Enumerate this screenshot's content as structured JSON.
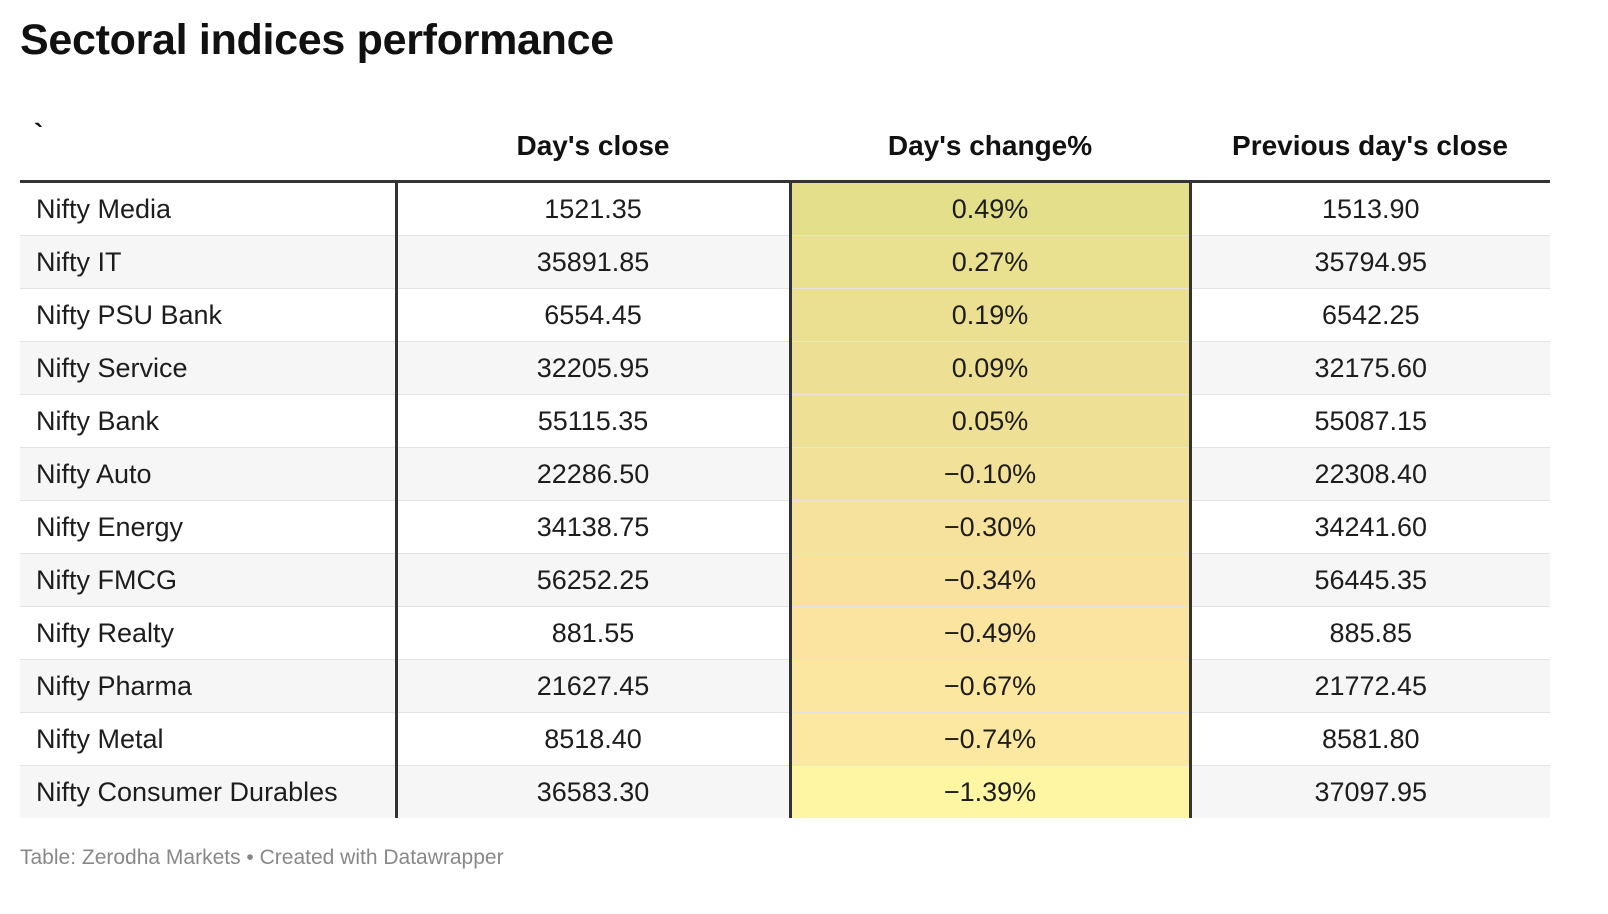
{
  "title": "Sectoral indices performance",
  "footer": "Table: Zerodha Markets • Created with Datawrapper",
  "chart_data": {
    "type": "table",
    "columns": [
      "`",
      "Day's close",
      "Day's change%",
      "Previous day's close"
    ],
    "rows": [
      {
        "name": "Nifty Media",
        "close": "1521.35",
        "change": "0.49%",
        "prev": "1513.90",
        "change_value": 0.49
      },
      {
        "name": "Nifty IT",
        "close": "35891.85",
        "change": "0.27%",
        "prev": "35794.95",
        "change_value": 0.27
      },
      {
        "name": "Nifty PSU Bank",
        "close": "6554.45",
        "change": "0.19%",
        "prev": "6542.25",
        "change_value": 0.19
      },
      {
        "name": "Nifty Service",
        "close": "32205.95",
        "change": "0.09%",
        "prev": "32175.60",
        "change_value": 0.09
      },
      {
        "name": "Nifty Bank",
        "close": "55115.35",
        "change": "0.05%",
        "prev": "55087.15",
        "change_value": 0.05
      },
      {
        "name": "Nifty Auto",
        "close": "22286.50",
        "change": "−0.10%",
        "prev": "22308.40",
        "change_value": -0.1
      },
      {
        "name": "Nifty Energy",
        "close": "34138.75",
        "change": "−0.30%",
        "prev": "34241.60",
        "change_value": -0.3
      },
      {
        "name": "Nifty FMCG",
        "close": "56252.25",
        "change": "−0.34%",
        "prev": "56445.35",
        "change_value": -0.34
      },
      {
        "name": "Nifty Realty",
        "close": "881.55",
        "change": "−0.49%",
        "prev": "885.85",
        "change_value": -0.49
      },
      {
        "name": "Nifty Pharma",
        "close": "21627.45",
        "change": "−0.67%",
        "prev": "21772.45",
        "change_value": -0.67
      },
      {
        "name": "Nifty Metal",
        "close": "8518.40",
        "change": "−0.74%",
        "prev": "8581.80",
        "change_value": -0.74
      },
      {
        "name": "Nifty Consumer Durables",
        "close": "36583.30",
        "change": "−1.39%",
        "prev": "37097.95",
        "change_value": -1.39
      }
    ],
    "heat_colors": {
      "high": "#e3df8b",
      "mid": "#fbe2a0",
      "low": "#fff6a4"
    }
  }
}
